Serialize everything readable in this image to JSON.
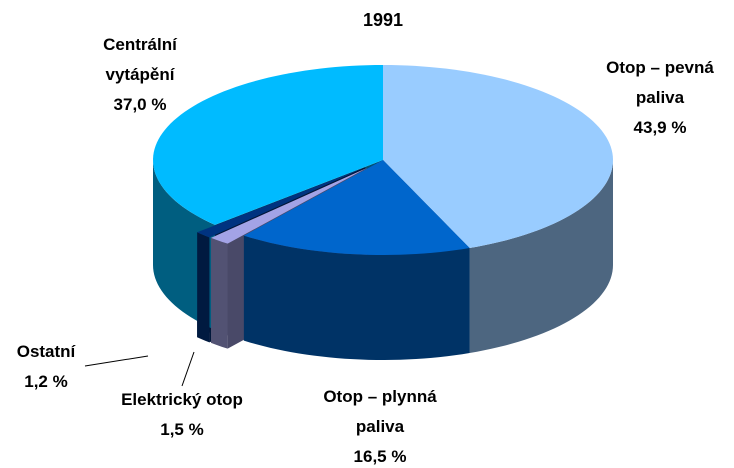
{
  "chart_data": {
    "type": "pie3d",
    "title": "1991",
    "categories": [
      "Otop – pevná paliva",
      "Otop – plynná paliva",
      "Elektrický otop",
      "Ostatní",
      "Centrální vytápění"
    ],
    "values": [
      43.9,
      16.5,
      1.5,
      1.2,
      37.0
    ],
    "value_labels": [
      "43,9 %",
      "16,5 %",
      "1,5 %",
      "1,2 %",
      "37,0 %"
    ],
    "colors": [
      "#99ccff",
      "#0066cc",
      "#a3a3e6",
      "#003380",
      "#00bbff"
    ]
  }
}
